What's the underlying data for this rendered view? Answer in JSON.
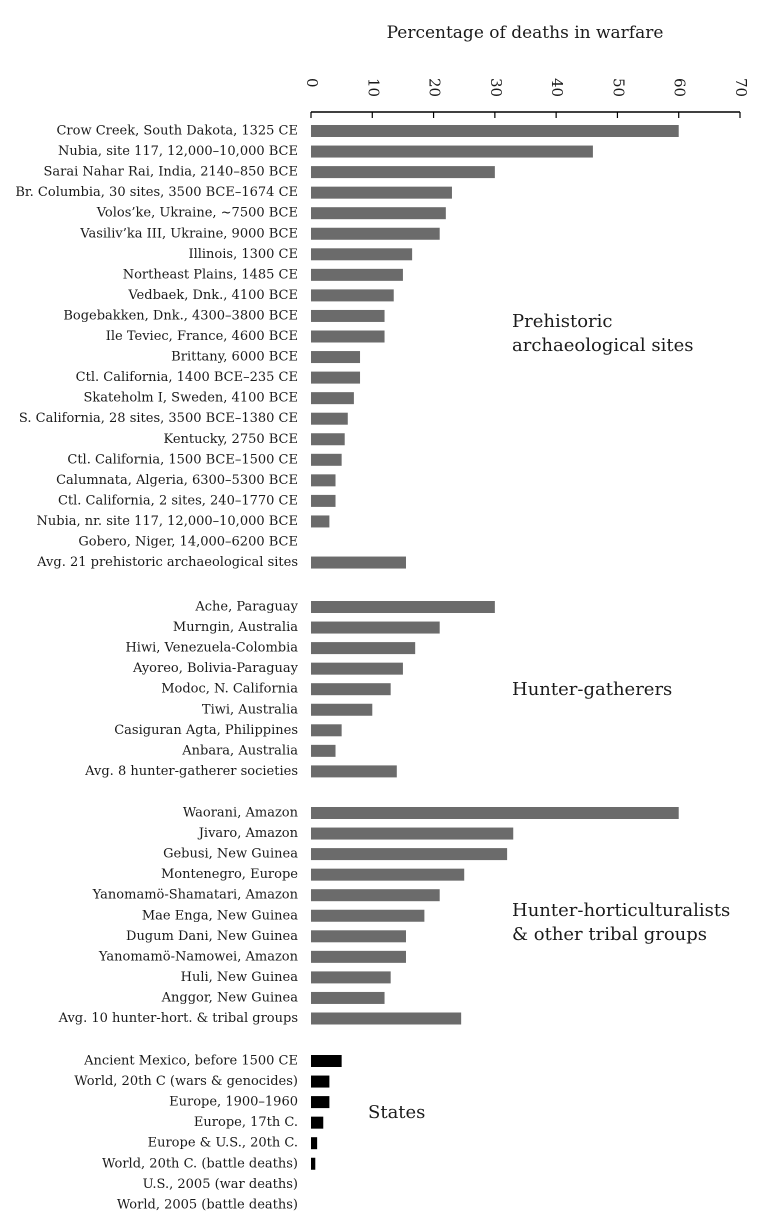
{
  "chart_data": {
    "type": "bar",
    "orientation": "horizontal",
    "title": "Percentage of deaths in warfare",
    "xlim": [
      0,
      70
    ],
    "ticks": [
      0,
      10,
      20,
      30,
      40,
      50,
      60,
      70
    ],
    "grid": false,
    "colors": {
      "bar": "#6b6b6b",
      "state_bar": "#000000",
      "axis": "#000000"
    },
    "groups": [
      {
        "label_lines": [
          "Prehistoric",
          "archaeological sites"
        ],
        "bar_color": "#6b6b6b",
        "items": [
          {
            "label": "Crow Creek, South Dakota, 1325 CE",
            "value": 60
          },
          {
            "label": "Nubia, site 117, 12,000–10,000 BCE",
            "value": 46
          },
          {
            "label": "Sarai Nahar Rai, India, 2140–850 BCE",
            "value": 30
          },
          {
            "label": "Br. Columbia, 30 sites, 3500 BCE–1674 CE",
            "value": 23
          },
          {
            "label": "Volos’ke, Ukraine, ~7500 BCE",
            "value": 22
          },
          {
            "label": "Vasiliv’ka III, Ukraine, 9000 BCE",
            "value": 21
          },
          {
            "label": "Illinois, 1300 CE",
            "value": 16.5
          },
          {
            "label": "Northeast Plains, 1485 CE",
            "value": 15
          },
          {
            "label": "Vedbaek, Dnk., 4100 BCE",
            "value": 13.5
          },
          {
            "label": "Bogebakken, Dnk., 4300–3800 BCE",
            "value": 12
          },
          {
            "label": "Ile Teviec, France, 4600 BCE",
            "value": 12
          },
          {
            "label": "Brittany, 6000 BCE",
            "value": 8
          },
          {
            "label": "Ctl. California, 1400 BCE–235 CE",
            "value": 8
          },
          {
            "label": "Skateholm I, Sweden, 4100 BCE",
            "value": 7
          },
          {
            "label": "S. California, 28 sites, 3500 BCE–1380 CE",
            "value": 6
          },
          {
            "label": "Kentucky, 2750 BCE",
            "value": 5.5
          },
          {
            "label": "Ctl. California, 1500 BCE–1500 CE",
            "value": 5
          },
          {
            "label": "Calumnata, Algeria, 6300–5300 BCE",
            "value": 4
          },
          {
            "label": "Ctl. California, 2 sites, 240–1770 CE",
            "value": 4
          },
          {
            "label": "Nubia, nr. site 117, 12,000–10,000 BCE",
            "value": 3
          },
          {
            "label": "Gobero, Niger, 14,000–6200 BCE",
            "value": 0
          },
          {
            "label": "Avg. 21 prehistoric archaeological sites",
            "value": 15.5
          }
        ]
      },
      {
        "label_lines": [
          "Hunter-gatherers"
        ],
        "bar_color": "#6b6b6b",
        "items": [
          {
            "label": "Ache, Paraguay",
            "value": 30
          },
          {
            "label": "Murngin, Australia",
            "value": 21
          },
          {
            "label": "Hiwi, Venezuela-Colombia",
            "value": 17
          },
          {
            "label": "Ayoreo, Bolivia-Paraguay",
            "value": 15
          },
          {
            "label": "Modoc, N. California",
            "value": 13
          },
          {
            "label": "Tiwi, Australia",
            "value": 10
          },
          {
            "label": "Casiguran Agta, Philippines",
            "value": 5
          },
          {
            "label": "Anbara, Australia",
            "value": 4
          },
          {
            "label": "Avg. 8 hunter-gatherer societies",
            "value": 14
          }
        ]
      },
      {
        "label_lines": [
          "Hunter-horticulturalists",
          "& other tribal groups"
        ],
        "bar_color": "#6b6b6b",
        "items": [
          {
            "label": "Waorani, Amazon",
            "value": 60
          },
          {
            "label": "Jivaro, Amazon",
            "value": 33
          },
          {
            "label": "Gebusi, New Guinea",
            "value": 32
          },
          {
            "label": "Montenegro, Europe",
            "value": 25
          },
          {
            "label": "Yanomamö-Shamatari, Amazon",
            "value": 21
          },
          {
            "label": "Mae Enga, New Guinea",
            "value": 18.5
          },
          {
            "label": "Dugum Dani, New Guinea",
            "value": 15.5
          },
          {
            "label": "Yanomamö-Namowei, Amazon",
            "value": 15.5
          },
          {
            "label": "Huli, New Guinea",
            "value": 13
          },
          {
            "label": "Anggor, New Guinea",
            "value": 12
          },
          {
            "label": "Avg. 10 hunter-hort. & tribal groups",
            "value": 24.5
          }
        ]
      },
      {
        "label_lines": [
          "States"
        ],
        "bar_color": "#000000",
        "items": [
          {
            "label": "Ancient Mexico, before 1500 CE",
            "value": 5
          },
          {
            "label": "World, 20th C (wars & genocides)",
            "value": 3
          },
          {
            "label": "Europe, 1900–1960",
            "value": 3
          },
          {
            "label": "Europe, 17th C.",
            "value": 2
          },
          {
            "label": "Europe & U.S., 20th C.",
            "value": 1
          },
          {
            "label": "World, 20th C. (battle deaths)",
            "value": 0.7
          },
          {
            "label": "U.S., 2005 (war deaths)",
            "value": 0
          },
          {
            "label": "World, 2005 (battle deaths)",
            "value": 0
          }
        ]
      }
    ]
  }
}
